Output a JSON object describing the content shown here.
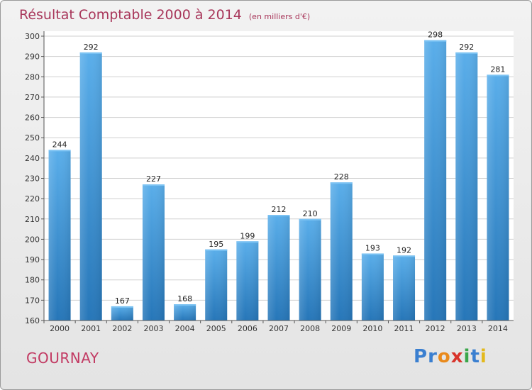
{
  "header": {
    "title": "Résultat Comptable 2000 à 2014",
    "subtitle": "(en milliers d'€)"
  },
  "footer": {
    "place": "GOURNAY",
    "brand_letters": [
      {
        "ch": "P",
        "color": "#3a7fd0"
      },
      {
        "ch": "r",
        "color": "#3a7fd0"
      },
      {
        "ch": "o",
        "color": "#e98a1c"
      },
      {
        "ch": "x",
        "color": "#d8342b"
      },
      {
        "ch": "i",
        "color": "#3aa64a"
      },
      {
        "ch": "t",
        "color": "#3a7fd0"
      },
      {
        "ch": "i",
        "color": "#e3b91c"
      }
    ]
  },
  "colors": {
    "bar_top": "#5aaeea",
    "bar_bottom": "#2676b8",
    "title": "#a8365a",
    "grid": "#cfcfcf"
  },
  "chart_data": {
    "type": "bar",
    "title": "Résultat Comptable 2000 à 2014",
    "subtitle": "(en milliers d'€)",
    "categories": [
      "2000",
      "2001",
      "2002",
      "2003",
      "2004",
      "2005",
      "2006",
      "2007",
      "2008",
      "2009",
      "2010",
      "2011",
      "2012",
      "2013",
      "2014"
    ],
    "values": [
      244,
      292,
      167,
      227,
      168,
      195,
      199,
      212,
      210,
      228,
      193,
      192,
      298,
      292,
      281
    ],
    "ylim": [
      160,
      300
    ],
    "yticks": [
      160,
      170,
      180,
      190,
      200,
      210,
      220,
      230,
      240,
      250,
      260,
      270,
      280,
      290,
      300
    ],
    "grid": true,
    "legend": "none"
  }
}
